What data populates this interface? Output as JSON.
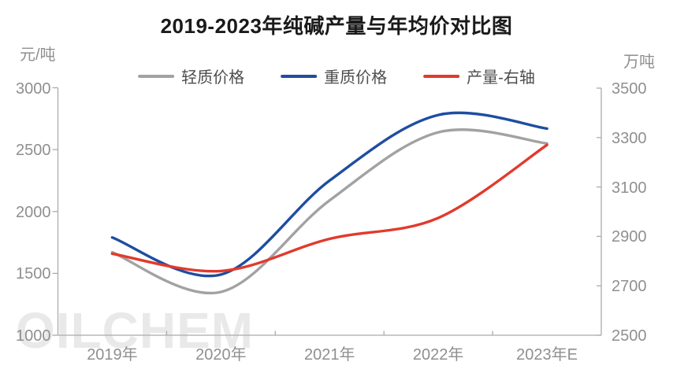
{
  "title": "2019-2023年纯碱产量与年均价对比图",
  "left_axis": {
    "unit": "元/吨",
    "ticks": [
      "3000",
      "2500",
      "2000",
      "1500",
      "1000"
    ]
  },
  "right_axis": {
    "unit": "万吨",
    "ticks": [
      "3500",
      "3300",
      "3100",
      "2900",
      "2700",
      "2500"
    ]
  },
  "x_axis": {
    "categories": [
      "2019年",
      "2020年",
      "2021年",
      "2022年",
      "2023年E"
    ]
  },
  "legend": {
    "items": [
      {
        "label": "轻质价格",
        "color": "#a2a2a2"
      },
      {
        "label": "重质价格",
        "color": "#1e4da1"
      },
      {
        "label": "产量-右轴",
        "color": "#e13a2b"
      }
    ]
  },
  "watermark": "OILCHEM",
  "colors": {
    "axis_line": "#ababab",
    "axis_text": "#8f8f8f",
    "legend_text": "#4d4d4d",
    "title_text": "#1a1a1a",
    "watermark_text": "#e9e9e9",
    "series_gray": "#a2a2a2",
    "series_blue": "#1e4da1",
    "series_red": "#e13a2b"
  },
  "chart_data": {
    "type": "line",
    "smooth": true,
    "grid": false,
    "legend_position": "top",
    "categories": [
      "2019年",
      "2020年",
      "2021年",
      "2022年",
      "2023年E"
    ],
    "series": [
      {
        "name": "轻质价格",
        "axis": "left",
        "color": "#a2a2a2",
        "values": [
          1670,
          1350,
          2090,
          2640,
          2550
        ]
      },
      {
        "name": "重质价格",
        "axis": "left",
        "color": "#1e4da1",
        "values": [
          1790,
          1490,
          2250,
          2780,
          2670
        ]
      },
      {
        "name": "产量-右轴",
        "axis": "right",
        "color": "#e13a2b",
        "values": [
          2830,
          2760,
          2890,
          2975,
          3270
        ]
      }
    ],
    "left_ylabel": "元/吨",
    "right_ylabel": "万吨",
    "left_ylim": [
      1000,
      3000
    ],
    "right_ylim": [
      2500,
      3500
    ],
    "left_tick_step": 500,
    "right_tick_step": 200
  }
}
